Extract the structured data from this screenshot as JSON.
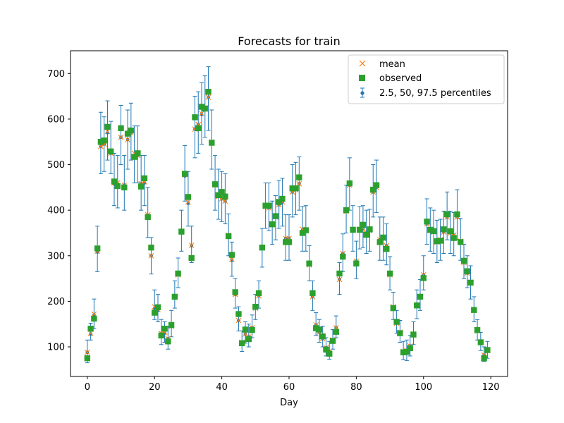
{
  "chart_data": {
    "type": "scatter",
    "title": "Forecasts for train",
    "xlabel": "Day",
    "ylabel": "",
    "xlim": [
      -5,
      125
    ],
    "ylim": [
      35,
      750
    ],
    "xticks": [
      0,
      20,
      40,
      60,
      80,
      100,
      120
    ],
    "yticks": [
      100,
      200,
      300,
      400,
      500,
      600,
      700
    ],
    "legend_position": "top-right",
    "colors": {
      "mean": "#ff7f0e",
      "observed": "#2ca02c",
      "percentiles": "#1f77b4"
    },
    "series": [
      {
        "name": "mean",
        "marker": "x"
      },
      {
        "name": "observed",
        "marker": "square"
      },
      {
        "name": "2.5, 50, 97.5 percentiles",
        "marker": "dot-errorbar"
      }
    ],
    "x": [
      0,
      1,
      2,
      3,
      4,
      5,
      6,
      7,
      8,
      9,
      10,
      11,
      12,
      13,
      14,
      15,
      16,
      17,
      18,
      19,
      20,
      21,
      22,
      23,
      24,
      25,
      26,
      27,
      28,
      29,
      30,
      31,
      32,
      33,
      34,
      35,
      36,
      37,
      38,
      39,
      40,
      41,
      42,
      43,
      44,
      45,
      46,
      47,
      48,
      49,
      50,
      51,
      52,
      53,
      54,
      55,
      56,
      57,
      58,
      59,
      60,
      61,
      62,
      63,
      64,
      65,
      66,
      67,
      68,
      69,
      70,
      71,
      72,
      73,
      74,
      75,
      76,
      77,
      78,
      79,
      80,
      81,
      82,
      83,
      84,
      85,
      86,
      87,
      88,
      89,
      90,
      91,
      92,
      93,
      94,
      95,
      96,
      97,
      98,
      99,
      100,
      101,
      102,
      103,
      104,
      105,
      106,
      107,
      108,
      109,
      110,
      111,
      112,
      113,
      114,
      115,
      116,
      117,
      118,
      119
    ],
    "observed": [
      75,
      140,
      162,
      316,
      550,
      553,
      583,
      529,
      463,
      453,
      580,
      450,
      568,
      575,
      517,
      525,
      452,
      470,
      385,
      318,
      175,
      187,
      125,
      140,
      112,
      148,
      210,
      261,
      353,
      480,
      429,
      295,
      604,
      580,
      627,
      623,
      660,
      548,
      457,
      433,
      440,
      430,
      343,
      302,
      220,
      172,
      108,
      138,
      117,
      137,
      188,
      218,
      318,
      410,
      410,
      369,
      387,
      418,
      425,
      330,
      330,
      448,
      448,
      472,
      350,
      356,
      283,
      218,
      141,
      138,
      123,
      94,
      85,
      113,
      133,
      261,
      298,
      400,
      459,
      357,
      283,
      357,
      368,
      346,
      358,
      445,
      455,
      330,
      340,
      315,
      261,
      185,
      155,
      130,
      88,
      89,
      97,
      127,
      191,
      210,
      251,
      375,
      357,
      354,
      332,
      333,
      358,
      391,
      354,
      339,
      391,
      330,
      289,
      266,
      241,
      181,
      137,
      110,
      75,
      93
    ],
    "mean": [
      88,
      130,
      172,
      310,
      540,
      545,
      573,
      525,
      460,
      460,
      560,
      455,
      555,
      570,
      525,
      520,
      458,
      462,
      390,
      300,
      188,
      182,
      130,
      132,
      118,
      145,
      210,
      258,
      352,
      478,
      418,
      323,
      578,
      588,
      612,
      625,
      648,
      550,
      455,
      430,
      425,
      420,
      345,
      292,
      215,
      158,
      110,
      128,
      122,
      142,
      185,
      212,
      318,
      408,
      405,
      370,
      385,
      412,
      418,
      338,
      338,
      440,
      445,
      458,
      358,
      355,
      280,
      210,
      148,
      132,
      118,
      98,
      90,
      115,
      142,
      248,
      305,
      398,
      455,
      358,
      288,
      358,
      360,
      350,
      355,
      440,
      450,
      335,
      338,
      322,
      258,
      188,
      152,
      132,
      90,
      92,
      102,
      128,
      190,
      210,
      258,
      370,
      355,
      352,
      330,
      335,
      352,
      385,
      350,
      345,
      385,
      332,
      285,
      262,
      240,
      180,
      135,
      110,
      82,
      92
    ],
    "median": [
      88,
      128,
      170,
      308,
      540,
      545,
      570,
      525,
      458,
      458,
      560,
      455,
      555,
      570,
      520,
      520,
      458,
      460,
      388,
      300,
      185,
      180,
      128,
      130,
      118,
      145,
      210,
      258,
      350,
      475,
      415,
      322,
      578,
      588,
      610,
      625,
      648,
      550,
      455,
      430,
      425,
      420,
      345,
      290,
      215,
      158,
      110,
      128,
      122,
      142,
      185,
      212,
      318,
      408,
      405,
      370,
      385,
      412,
      418,
      338,
      338,
      440,
      445,
      458,
      356,
      355,
      280,
      210,
      148,
      132,
      118,
      98,
      90,
      115,
      142,
      248,
      305,
      398,
      455,
      358,
      288,
      358,
      360,
      350,
      355,
      440,
      450,
      335,
      338,
      322,
      258,
      188,
      152,
      132,
      90,
      92,
      102,
      128,
      190,
      210,
      258,
      370,
      355,
      352,
      330,
      335,
      352,
      385,
      350,
      345,
      385,
      332,
      285,
      262,
      240,
      180,
      135,
      110,
      82,
      92
    ],
    "lower": [
      65,
      115,
      140,
      265,
      480,
      485,
      510,
      480,
      410,
      405,
      500,
      400,
      490,
      510,
      460,
      460,
      400,
      410,
      340,
      260,
      160,
      155,
      105,
      110,
      95,
      122,
      185,
      230,
      310,
      420,
      365,
      285,
      515,
      525,
      545,
      560,
      575,
      490,
      400,
      380,
      375,
      370,
      300,
      255,
      185,
      135,
      90,
      108,
      100,
      120,
      160,
      185,
      275,
      360,
      355,
      325,
      335,
      360,
      365,
      290,
      290,
      385,
      390,
      400,
      310,
      310,
      245,
      180,
      125,
      110,
      100,
      80,
      73,
      95,
      120,
      215,
      265,
      350,
      400,
      310,
      250,
      315,
      318,
      305,
      310,
      385,
      395,
      290,
      290,
      280,
      225,
      160,
      130,
      110,
      72,
      70,
      80,
      105,
      162,
      180,
      225,
      325,
      310,
      305,
      285,
      290,
      305,
      335,
      305,
      300,
      335,
      290,
      250,
      230,
      205,
      155,
      115,
      92,
      68,
      75
    ],
    "upper": [
      115,
      152,
      205,
      365,
      615,
      605,
      640,
      595,
      525,
      520,
      630,
      520,
      620,
      635,
      585,
      585,
      520,
      520,
      450,
      340,
      225,
      215,
      160,
      155,
      145,
      180,
      245,
      295,
      400,
      542,
      485,
      365,
      650,
      660,
      680,
      695,
      715,
      620,
      520,
      490,
      485,
      480,
      392,
      330,
      250,
      188,
      135,
      155,
      150,
      170,
      215,
      245,
      360,
      460,
      460,
      420,
      432,
      465,
      470,
      390,
      390,
      500,
      505,
      517,
      408,
      410,
      322,
      245,
      175,
      160,
      145,
      120,
      112,
      138,
      168,
      285,
      348,
      455,
      515,
      410,
      332,
      408,
      410,
      400,
      402,
      500,
      510,
      385,
      385,
      370,
      298,
      220,
      180,
      158,
      112,
      115,
      125,
      155,
      225,
      248,
      300,
      425,
      405,
      400,
      378,
      380,
      398,
      440,
      398,
      395,
      445,
      382,
      325,
      300,
      278,
      210,
      160,
      132,
      100,
      112
    ]
  }
}
